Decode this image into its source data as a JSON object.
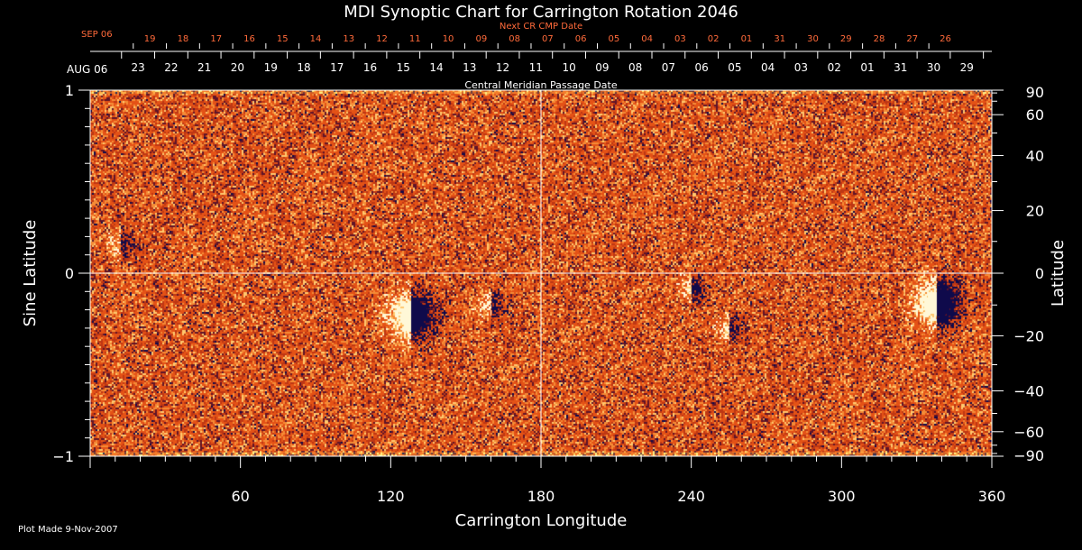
{
  "chart_data": {
    "type": "heatmap",
    "title": "MDI Synoptic Chart for Carrington Rotation 2046",
    "xlabel": "Carrington Longitude",
    "ylabel_left": "Sine Latitude",
    "ylabel_right": "Latitude",
    "xlim": [
      0,
      360
    ],
    "ylim": [
      -1,
      1
    ],
    "x_ticks": [
      60,
      120,
      180,
      240,
      300,
      360
    ],
    "y_ticks_left": [
      {
        "value": 1,
        "label": "1"
      },
      {
        "value": 0,
        "label": "0"
      },
      {
        "value": -1,
        "label": "−1"
      }
    ],
    "y_ticks_right": [
      {
        "deg": 90,
        "label": "90"
      },
      {
        "deg": 60,
        "label": "60"
      },
      {
        "deg": 40,
        "label": "40"
      },
      {
        "deg": 20,
        "label": "20"
      },
      {
        "deg": 0,
        "label": "0"
      },
      {
        "deg": -20,
        "label": "−20"
      },
      {
        "deg": -40,
        "label": "−40"
      },
      {
        "deg": -60,
        "label": "−60"
      },
      {
        "deg": -90,
        "label": "−90"
      }
    ],
    "cmp_axis": {
      "title": "Central Meridian Passage Date",
      "start_label": "AUG 06",
      "dates": [
        "23",
        "22",
        "21",
        "20",
        "19",
        "18",
        "17",
        "16",
        "15",
        "14",
        "13",
        "12",
        "11",
        "10",
        "09",
        "08",
        "07",
        "06",
        "05",
        "04",
        "03",
        "02",
        "01",
        "31",
        "30",
        "29"
      ]
    },
    "next_cmp_axis": {
      "title": "Next CR CMP Date",
      "start_label": "SEP 06",
      "dates": [
        "19",
        "18",
        "17",
        "16",
        "15",
        "14",
        "13",
        "12",
        "11",
        "10",
        "09",
        "08",
        "07",
        "06",
        "05",
        "04",
        "03",
        "02",
        "01",
        "31",
        "30",
        "29",
        "28",
        "27",
        "26"
      ]
    },
    "grid": "equator and 180 meridian",
    "active_regions": [
      {
        "lon": 128,
        "sinlat": -0.23,
        "type": "bipolar"
      },
      {
        "lon": 338,
        "sinlat": -0.16,
        "type": "bipolar"
      },
      {
        "lon": 160,
        "sinlat": -0.18,
        "type": "bipolar"
      },
      {
        "lon": 255,
        "sinlat": -0.3,
        "type": "bipolar"
      },
      {
        "lon": 12,
        "sinlat": 0.15,
        "type": "bipolar"
      },
      {
        "lon": 240,
        "sinlat": -0.08,
        "type": "bipolar"
      }
    ],
    "colors": {
      "background": "#000000",
      "map_base": "#e8501a",
      "positive": "#fff6d0",
      "negative": "#0a0a50",
      "next_cmp": "#ff6a3a"
    }
  },
  "footer": {
    "plot_made": "Plot Made  9-Nov-2007"
  }
}
